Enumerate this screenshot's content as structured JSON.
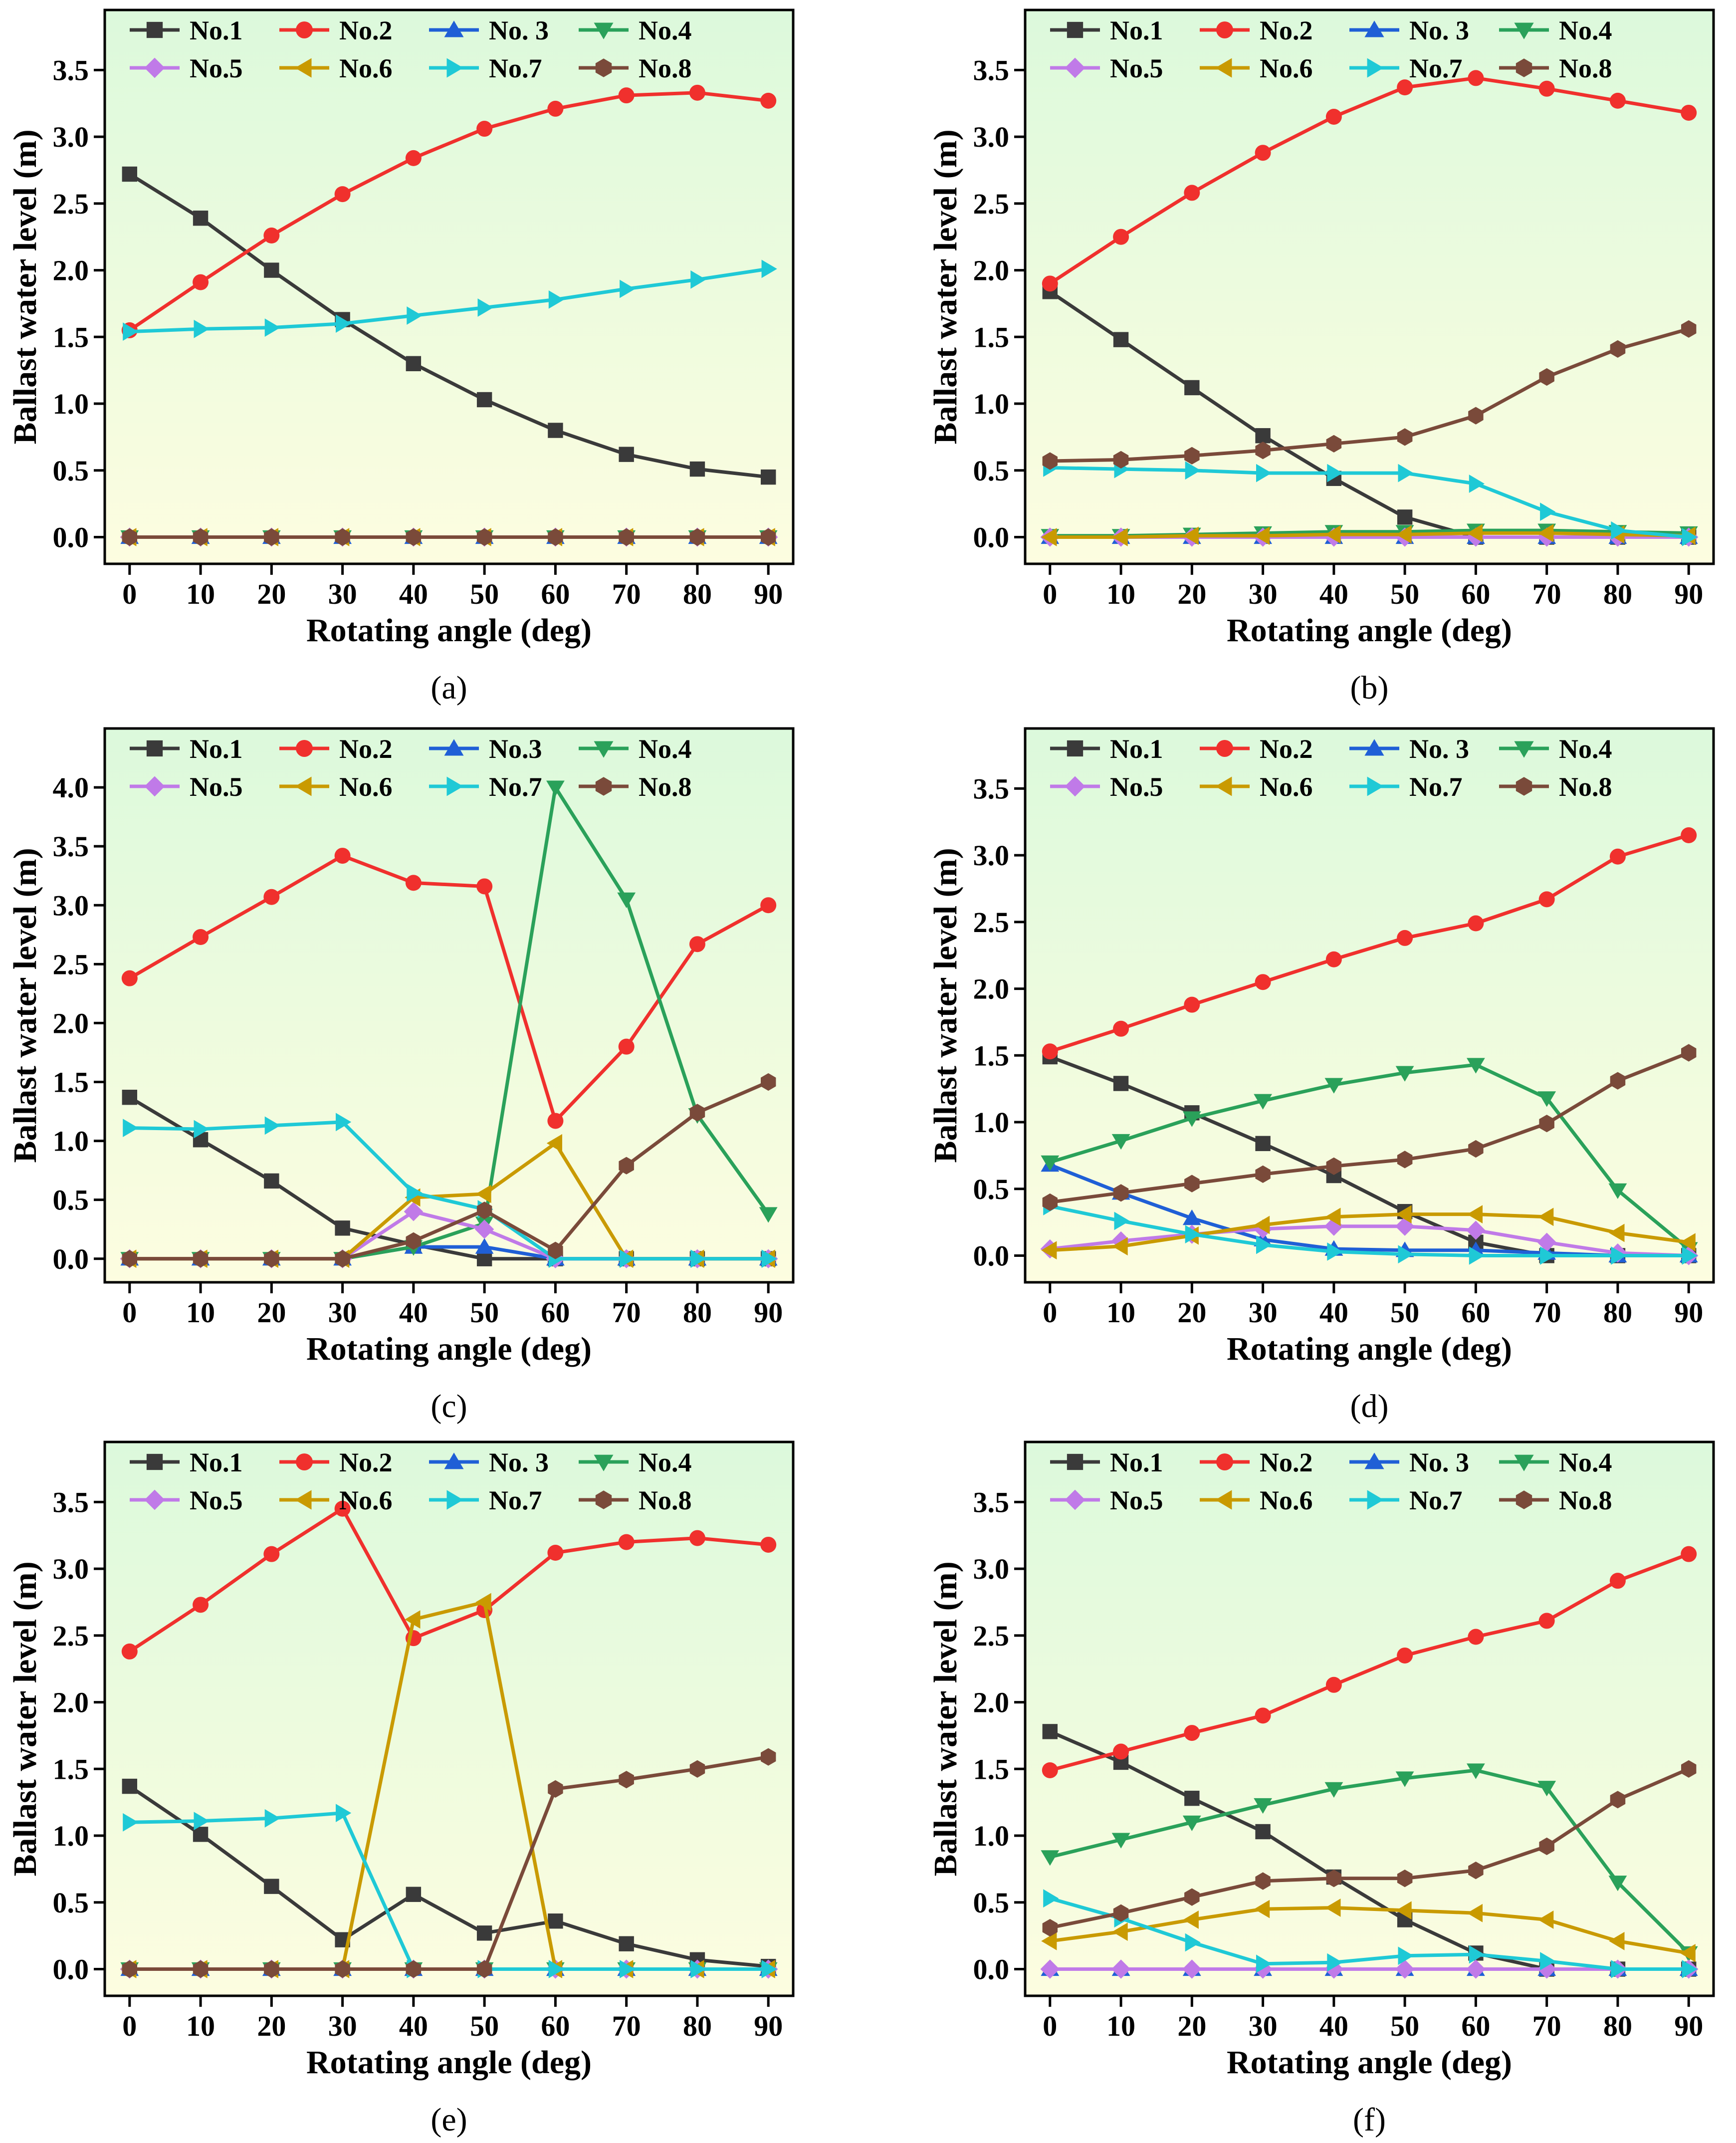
{
  "figure": {
    "colors": {
      "No.1": "#3a3a3a",
      "No.2": "#f0302d",
      "No.3": "#1f5fd6",
      "No.4": "#2aa15a",
      "No.5": "#c07ae8",
      "No.6": "#c99a00",
      "No.7": "#1fc9d6",
      "No.8": "#7a4a3a"
    },
    "markers": {
      "No.1": "square",
      "No.2": "circle",
      "No.3": "triangle-up",
      "No.4": "triangle-down",
      "No.5": "diamond",
      "No.6": "triangle-left",
      "No.7": "triangle-right",
      "No.8": "hexagon"
    },
    "background_gradient": [
      "#dcf9dc",
      "#fdfde0"
    ]
  },
  "chart_data": [
    {
      "type": "line",
      "panel_label": "(a)",
      "xlabel": "Rotating angle (deg)",
      "ylabel": "Ballast water level (m)",
      "x": [
        0,
        10,
        20,
        30,
        40,
        50,
        60,
        70,
        80,
        90
      ],
      "xticks": [
        "0",
        "10",
        "20",
        "30",
        "40",
        "50",
        "60",
        "70",
        "80",
        "90"
      ],
      "yticks": [
        "0.0",
        "0.5",
        "1.0",
        "1.5",
        "2.0",
        "2.5",
        "3.0",
        "3.5"
      ],
      "ylim": [
        -0.2,
        3.95
      ],
      "legend": [
        "No.1",
        "No.2",
        "No. 3",
        "No.4",
        "No.5",
        "No.6",
        "No.7",
        "No.8"
      ],
      "series": [
        {
          "name": "No.1",
          "values": [
            2.72,
            2.39,
            2.0,
            1.63,
            1.3,
            1.03,
            0.8,
            0.62,
            0.51,
            0.45
          ]
        },
        {
          "name": "No.2",
          "values": [
            1.55,
            1.91,
            2.26,
            2.57,
            2.84,
            3.06,
            3.21,
            3.31,
            3.33,
            3.27
          ]
        },
        {
          "name": "No.3",
          "values": [
            0,
            0,
            0,
            0,
            0,
            0,
            0,
            0,
            0,
            0
          ]
        },
        {
          "name": "No.4",
          "values": [
            0,
            0,
            0,
            0,
            0,
            0,
            0,
            0,
            0,
            0
          ]
        },
        {
          "name": "No.5",
          "values": [
            0,
            0,
            0,
            0,
            0,
            0,
            0,
            0,
            0,
            0
          ]
        },
        {
          "name": "No.6",
          "values": [
            0,
            0,
            0,
            0,
            0,
            0,
            0,
            0,
            0,
            0
          ]
        },
        {
          "name": "No.7",
          "values": [
            1.54,
            1.56,
            1.57,
            1.6,
            1.66,
            1.72,
            1.78,
            1.86,
            1.93,
            2.01
          ]
        },
        {
          "name": "No.8",
          "values": [
            0,
            0,
            0,
            0,
            0,
            0,
            0,
            0,
            0,
            0
          ]
        }
      ]
    },
    {
      "type": "line",
      "panel_label": "(b)",
      "xlabel": "Rotating angle (deg)",
      "ylabel": "Ballast water level (m)",
      "x": [
        0,
        10,
        20,
        30,
        40,
        50,
        60,
        70,
        80,
        90
      ],
      "xticks": [
        "0",
        "10",
        "20",
        "30",
        "40",
        "50",
        "60",
        "70",
        "80",
        "90"
      ],
      "yticks": [
        "0.0",
        "0.5",
        "1.0",
        "1.5",
        "2.0",
        "2.5",
        "3.0",
        "3.5"
      ],
      "ylim": [
        -0.2,
        3.95
      ],
      "legend": [
        "No.1",
        "No.2",
        "No. 3",
        "No.4",
        "No.5",
        "No.6",
        "No.7",
        "No.8"
      ],
      "series": [
        {
          "name": "No.1",
          "values": [
            1.84,
            1.48,
            1.12,
            0.76,
            0.44,
            0.15,
            0.0,
            0.0,
            0.0,
            0.0
          ]
        },
        {
          "name": "No.2",
          "values": [
            1.9,
            2.25,
            2.58,
            2.88,
            3.15,
            3.37,
            3.44,
            3.36,
            3.27,
            3.18
          ]
        },
        {
          "name": "No.3",
          "values": [
            0,
            0,
            0,
            0,
            0,
            0,
            0,
            0,
            0,
            0
          ]
        },
        {
          "name": "No.4",
          "values": [
            0.01,
            0.01,
            0.02,
            0.03,
            0.04,
            0.04,
            0.05,
            0.05,
            0.04,
            0.03
          ]
        },
        {
          "name": "No.5",
          "values": [
            0,
            0,
            0,
            0,
            0,
            0,
            0,
            0,
            0,
            0
          ]
        },
        {
          "name": "No.6",
          "values": [
            0.0,
            0.0,
            0.01,
            0.01,
            0.02,
            0.02,
            0.03,
            0.03,
            0.02,
            0.01
          ]
        },
        {
          "name": "No.7",
          "values": [
            0.52,
            0.51,
            0.5,
            0.48,
            0.48,
            0.48,
            0.4,
            0.19,
            0.05,
            0.0
          ]
        },
        {
          "name": "No.8",
          "values": [
            0.57,
            0.58,
            0.61,
            0.65,
            0.7,
            0.75,
            0.91,
            1.2,
            1.41,
            1.56
          ]
        }
      ]
    },
    {
      "type": "line",
      "panel_label": "(c)",
      "xlabel": "Rotating angle (deg)",
      "ylabel": "Ballast water level (m)",
      "x": [
        0,
        10,
        20,
        30,
        40,
        50,
        60,
        70,
        80,
        90
      ],
      "xticks": [
        "0",
        "10",
        "20",
        "30",
        "40",
        "50",
        "60",
        "70",
        "80",
        "90"
      ],
      "yticks": [
        "0.0",
        "0.5",
        "1.0",
        "1.5",
        "2.0",
        "2.5",
        "3.0",
        "3.5",
        "4.0"
      ],
      "ylim": [
        -0.2,
        4.5
      ],
      "legend": [
        "No.1",
        "No.2",
        "No.3",
        "No.4",
        "No.5",
        "No.6",
        "No.7",
        "No.8"
      ],
      "series": [
        {
          "name": "No.1",
          "values": [
            1.37,
            1.01,
            0.66,
            0.26,
            0.12,
            0.0,
            0.0,
            0.0,
            0.0,
            0.0
          ]
        },
        {
          "name": "No.2",
          "values": [
            2.38,
            2.73,
            3.07,
            3.42,
            3.19,
            3.16,
            1.17,
            1.8,
            2.67,
            3.0
          ]
        },
        {
          "name": "No.3",
          "values": [
            0.0,
            0.0,
            0.0,
            0.0,
            0.1,
            0.1,
            0.0,
            0.0,
            0.0,
            0.0
          ]
        },
        {
          "name": "No.4",
          "values": [
            0.0,
            0.0,
            0.0,
            0.0,
            0.1,
            0.3,
            4.0,
            3.05,
            1.22,
            0.38
          ]
        },
        {
          "name": "No.5",
          "values": [
            0.0,
            0.0,
            0.0,
            0.0,
            0.4,
            0.25,
            0.0,
            0.0,
            0.0,
            0.0
          ]
        },
        {
          "name": "No.6",
          "values": [
            0.0,
            0.0,
            0.0,
            0.0,
            0.52,
            0.55,
            0.98,
            0.0,
            0.0,
            0.0
          ]
        },
        {
          "name": "No.7",
          "values": [
            1.11,
            1.1,
            1.13,
            1.16,
            0.56,
            0.42,
            0.0,
            0.0,
            0.0,
            0.0
          ]
        },
        {
          "name": "No.8",
          "values": [
            0.0,
            0.0,
            0.0,
            0.0,
            0.15,
            0.41,
            0.07,
            0.79,
            1.24,
            1.5
          ]
        }
      ]
    },
    {
      "type": "line",
      "panel_label": "(d)",
      "xlabel": "Rotating angle (deg)",
      "ylabel": "Ballast water level (m)",
      "x": [
        0,
        10,
        20,
        30,
        40,
        50,
        60,
        70,
        80,
        90
      ],
      "xticks": [
        "0",
        "10",
        "20",
        "30",
        "40",
        "50",
        "60",
        "70",
        "80",
        "90"
      ],
      "yticks": [
        "0.0",
        "0.5",
        "1.0",
        "1.5",
        "2.0",
        "2.5",
        "3.0",
        "3.5"
      ],
      "ylim": [
        -0.2,
        3.95
      ],
      "legend": [
        "No.1",
        "No.2",
        "No. 3",
        "No.4",
        "No.5",
        "No.6",
        "No.7",
        "No.8"
      ],
      "series": [
        {
          "name": "No.1",
          "values": [
            1.49,
            1.29,
            1.07,
            0.84,
            0.6,
            0.33,
            0.1,
            0.0,
            0.0,
            0.0
          ]
        },
        {
          "name": "No.2",
          "values": [
            1.53,
            1.7,
            1.88,
            2.05,
            2.22,
            2.38,
            2.49,
            2.67,
            2.99,
            3.15
          ]
        },
        {
          "name": "No.3",
          "values": [
            0.68,
            0.47,
            0.28,
            0.12,
            0.05,
            0.04,
            0.04,
            0.02,
            0.0,
            0.0
          ]
        },
        {
          "name": "No.4",
          "values": [
            0.7,
            0.86,
            1.03,
            1.16,
            1.28,
            1.37,
            1.43,
            1.18,
            0.49,
            0.05
          ]
        },
        {
          "name": "No.5",
          "values": [
            0.05,
            0.11,
            0.16,
            0.2,
            0.22,
            0.22,
            0.19,
            0.1,
            0.02,
            0.0
          ]
        },
        {
          "name": "No.6",
          "values": [
            0.04,
            0.07,
            0.15,
            0.23,
            0.29,
            0.31,
            0.31,
            0.29,
            0.17,
            0.1
          ]
        },
        {
          "name": "No.7",
          "values": [
            0.37,
            0.26,
            0.16,
            0.08,
            0.03,
            0.01,
            0.0,
            0.0,
            0.0,
            0.0
          ]
        },
        {
          "name": "No.8",
          "values": [
            0.4,
            0.47,
            0.54,
            0.61,
            0.67,
            0.72,
            0.8,
            0.99,
            1.31,
            1.52
          ]
        }
      ]
    },
    {
      "type": "line",
      "panel_label": "(e)",
      "xlabel": "Rotating angle (deg)",
      "ylabel": "Ballast water level (m)",
      "x": [
        0,
        10,
        20,
        30,
        40,
        50,
        60,
        70,
        80,
        90
      ],
      "xticks": [
        "0",
        "10",
        "20",
        "30",
        "40",
        "50",
        "60",
        "70",
        "80",
        "90"
      ],
      "yticks": [
        "0.0",
        "0.5",
        "1.0",
        "1.5",
        "2.0",
        "2.5",
        "3.0",
        "3.5"
      ],
      "ylim": [
        -0.2,
        3.95
      ],
      "legend": [
        "No.1",
        "No.2",
        "No. 3",
        "No.4",
        "No.5",
        "No.6",
        "No.7",
        "No.8"
      ],
      "series": [
        {
          "name": "No.1",
          "values": [
            1.37,
            1.01,
            0.62,
            0.22,
            0.56,
            0.27,
            0.36,
            0.19,
            0.07,
            0.02
          ]
        },
        {
          "name": "No.2",
          "values": [
            2.38,
            2.73,
            3.11,
            3.45,
            2.48,
            2.69,
            3.12,
            3.2,
            3.23,
            3.18
          ]
        },
        {
          "name": "No.3",
          "values": [
            0,
            0,
            0,
            0,
            0,
            0,
            0,
            0,
            0,
            0
          ]
        },
        {
          "name": "No.4",
          "values": [
            0,
            0,
            0,
            0,
            0,
            0,
            0,
            0,
            0,
            0
          ]
        },
        {
          "name": "No.5",
          "values": [
            0,
            0,
            0,
            0,
            0,
            0,
            0,
            0,
            0,
            0
          ]
        },
        {
          "name": "No.6",
          "values": [
            0.0,
            0.0,
            0.0,
            0.0,
            2.62,
            2.75,
            0.0,
            0.0,
            0.0,
            0.0
          ]
        },
        {
          "name": "No.7",
          "values": [
            1.1,
            1.11,
            1.13,
            1.17,
            0.0,
            0.0,
            0.0,
            0.0,
            0.0,
            0.0
          ]
        },
        {
          "name": "No.8",
          "values": [
            0.0,
            0.0,
            0.0,
            0.0,
            0.0,
            0.0,
            1.35,
            1.42,
            1.5,
            1.59
          ]
        }
      ]
    },
    {
      "type": "line",
      "panel_label": "(f)",
      "xlabel": "Rotating angle (deg)",
      "ylabel": "Ballast water level (m)",
      "x": [
        0,
        10,
        20,
        30,
        40,
        50,
        60,
        70,
        80,
        90
      ],
      "xticks": [
        "0",
        "10",
        "20",
        "30",
        "40",
        "50",
        "60",
        "70",
        "80",
        "90"
      ],
      "yticks": [
        "0.0",
        "0.5",
        "1.0",
        "1.5",
        "2.0",
        "2.5",
        "3.0",
        "3.5"
      ],
      "ylim": [
        -0.2,
        3.95
      ],
      "legend": [
        "No.1",
        "No.2",
        "No. 3",
        "No.4",
        "No.5",
        "No.6",
        "No.7",
        "No.8"
      ],
      "series": [
        {
          "name": "No.1",
          "values": [
            1.78,
            1.55,
            1.28,
            1.03,
            0.69,
            0.37,
            0.12,
            0.0,
            0.0,
            0.0
          ]
        },
        {
          "name": "No.2",
          "values": [
            1.49,
            1.63,
            1.77,
            1.9,
            2.13,
            2.35,
            2.49,
            2.61,
            2.91,
            3.11
          ]
        },
        {
          "name": "No.3",
          "values": [
            0,
            0,
            0,
            0,
            0,
            0,
            0,
            0,
            0,
            0
          ]
        },
        {
          "name": "No.4",
          "values": [
            0.84,
            0.97,
            1.1,
            1.23,
            1.35,
            1.43,
            1.49,
            1.36,
            0.65,
            0.12
          ]
        },
        {
          "name": "No.5",
          "values": [
            0,
            0,
            0,
            0,
            0,
            0,
            0,
            0,
            0,
            0
          ]
        },
        {
          "name": "No.6",
          "values": [
            0.21,
            0.28,
            0.37,
            0.45,
            0.46,
            0.44,
            0.42,
            0.37,
            0.21,
            0.12
          ]
        },
        {
          "name": "No.7",
          "values": [
            0.53,
            0.38,
            0.2,
            0.04,
            0.05,
            0.1,
            0.11,
            0.06,
            0.0,
            0.0
          ]
        },
        {
          "name": "No.8",
          "values": [
            0.31,
            0.42,
            0.54,
            0.66,
            0.68,
            0.68,
            0.74,
            0.92,
            1.27,
            1.5
          ]
        }
      ]
    }
  ]
}
